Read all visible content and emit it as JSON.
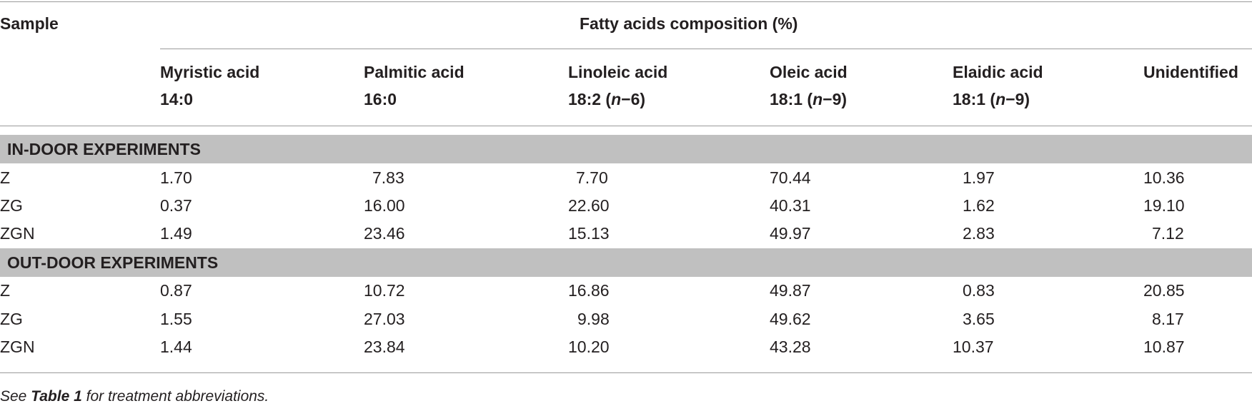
{
  "header": {
    "sample_label": "Sample",
    "group_label": "Fatty acids composition (%)",
    "columns": [
      {
        "name": "Myristic acid",
        "formula": "14:0",
        "suffix": ""
      },
      {
        "name": "Palmitic acid",
        "formula": "16:0",
        "suffix": ""
      },
      {
        "name": "Linoleic acid",
        "formula": "18:2 (",
        "italic": "n",
        "suffix": "−6)"
      },
      {
        "name": "Oleic acid",
        "formula": "18:1 (",
        "italic": "n",
        "suffix": "−9)"
      },
      {
        "name": "Elaidic acid",
        "formula": "18:1 (",
        "italic": "n",
        "suffix": "−9)"
      },
      {
        "name": "Unidentified",
        "formula": "",
        "suffix": ""
      }
    ]
  },
  "sections": [
    {
      "title": "IN-DOOR EXPERIMENTS",
      "rows": [
        {
          "sample": "Z",
          "values": [
            "1.70",
            "7.83",
            "7.70",
            "70.44",
            "1.97",
            "10.36"
          ]
        },
        {
          "sample": "ZG",
          "values": [
            "0.37",
            "16.00",
            "22.60",
            "40.31",
            "1.62",
            "19.10"
          ]
        },
        {
          "sample": "ZGN",
          "values": [
            "1.49",
            "23.46",
            "15.13",
            "49.97",
            "2.83",
            "7.12"
          ]
        }
      ]
    },
    {
      "title": "OUT-DOOR EXPERIMENTS",
      "rows": [
        {
          "sample": "Z",
          "values": [
            "0.87",
            "10.72",
            "16.86",
            "49.87",
            "0.83",
            "20.85"
          ]
        },
        {
          "sample": "ZG",
          "values": [
            "1.55",
            "27.03",
            "9.98",
            "49.62",
            "3.65",
            "8.17"
          ]
        },
        {
          "sample": "ZGN",
          "values": [
            "1.44",
            "23.84",
            "10.20",
            "43.28",
            "10.37",
            "10.87"
          ]
        }
      ]
    }
  ],
  "footnote": {
    "pre": "See ",
    "bold": "Table 1",
    "post": " for treatment abbreviations."
  }
}
